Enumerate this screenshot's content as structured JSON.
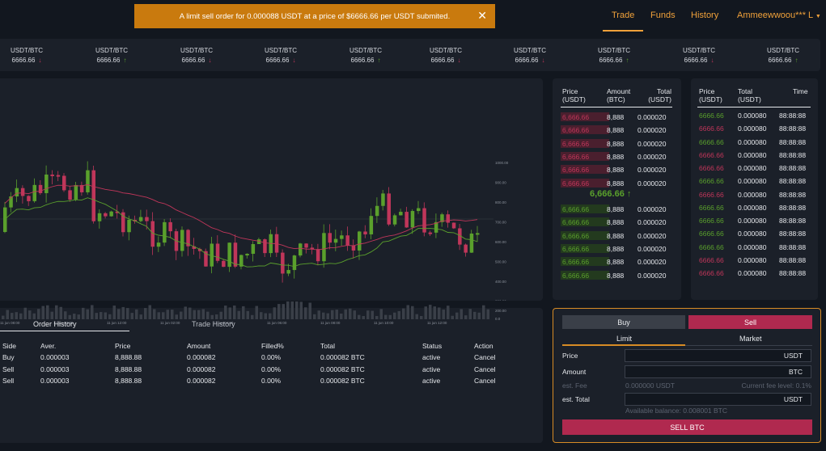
{
  "toast": {
    "message": "A limit sell order for 0.000088 USDT at a price of $6666.66 per USDT submited.",
    "close_icon": "close-icon"
  },
  "nav": {
    "trade": "Trade",
    "funds": "Funds",
    "history": "History",
    "user": "Ammeewwoou*** L",
    "user_icon": "caret-down-icon"
  },
  "ticker": [
    {
      "pair": "USDT/BTC",
      "price": "6666.66",
      "dir": "down"
    },
    {
      "pair": "USDT/BTC",
      "price": "6666.66",
      "dir": "up"
    },
    {
      "pair": "USDT/BTC",
      "price": "6666.66",
      "dir": "down"
    },
    {
      "pair": "USDT/BTC",
      "price": "6666.66",
      "dir": "down"
    },
    {
      "pair": "USDT/BTC",
      "price": "6666.66",
      "dir": "up"
    },
    {
      "pair": "USDT/BTC",
      "price": "6666.66",
      "dir": "down"
    },
    {
      "pair": "USDT/BTC",
      "price": "6666.66",
      "dir": "down"
    },
    {
      "pair": "USDT/BTC",
      "price": "6666.66",
      "dir": "up"
    },
    {
      "pair": "USDT/BTC",
      "price": "6666.66",
      "dir": "down"
    },
    {
      "pair": "USDT/BTC",
      "price": "6666.66",
      "dir": "up"
    }
  ],
  "chart": {
    "y_ticks": [
      "1000.00",
      "900.00",
      "800.00",
      "700.00",
      "600.00",
      "500.00",
      "400.00",
      "300.00"
    ],
    "vol_ticks": [
      "200.00",
      "0.0"
    ],
    "x_ticks": [
      "11 jun 08:00",
      "11 jun 10:00",
      "11 jun 12:00",
      "11 jun 02:00",
      "11 jun 04:00",
      "11 jun 06:00",
      "11 jun 08:00",
      "11 jun 10:00",
      "11 jun 12:00"
    ],
    "colors": {
      "up": "#5aa02c",
      "down": "#c0365a"
    }
  },
  "orderbook": {
    "headers": {
      "price": "Price",
      "price_unit": "(USDT)",
      "amount": "Amount",
      "amount_unit": "(BTC)",
      "total": "Total",
      "total_unit": "(USDT)"
    },
    "asks": [
      {
        "price": "6,666.66",
        "amount": "8,888",
        "total": "0.000020"
      },
      {
        "price": "6,666.66",
        "amount": "8,888",
        "total": "0.000020"
      },
      {
        "price": "6,666.66",
        "amount": "8,888",
        "total": "0.000020"
      },
      {
        "price": "6,666.66",
        "amount": "8,888",
        "total": "0.000020"
      },
      {
        "price": "6,666.66",
        "amount": "8,888",
        "total": "0.000020"
      },
      {
        "price": "6,666.66",
        "amount": "8,888",
        "total": "0.000020"
      }
    ],
    "last": "6,666.66",
    "bids": [
      {
        "price": "6,666.66",
        "amount": "8,888",
        "total": "0.000020"
      },
      {
        "price": "6,666.66",
        "amount": "8,888",
        "total": "0.000020"
      },
      {
        "price": "6,666.66",
        "amount": "8,888",
        "total": "0.000020"
      },
      {
        "price": "6,666.66",
        "amount": "8,888",
        "total": "0.000020"
      },
      {
        "price": "6,666.66",
        "amount": "8,888",
        "total": "0.000020"
      },
      {
        "price": "6,666.66",
        "amount": "8,888",
        "total": "0.000020"
      }
    ]
  },
  "trades": {
    "headers": {
      "price": "Price",
      "price_unit": "(USDT)",
      "total": "Total",
      "total_unit": "(USDT)",
      "time": "Time"
    },
    "rows": [
      {
        "price": "6666.66",
        "total": "0.000080",
        "time": "88:88:88",
        "side": "up"
      },
      {
        "price": "6666.66",
        "total": "0.000080",
        "time": "88:88:88",
        "side": "down"
      },
      {
        "price": "6666.66",
        "total": "0.000080",
        "time": "88:88:88",
        "side": "up"
      },
      {
        "price": "6666.66",
        "total": "0.000080",
        "time": "88:88:88",
        "side": "down"
      },
      {
        "price": "6666.66",
        "total": "0.000080",
        "time": "88:88:88",
        "side": "down"
      },
      {
        "price": "6666.66",
        "total": "0.000080",
        "time": "88:88:88",
        "side": "up"
      },
      {
        "price": "6666.66",
        "total": "0.000080",
        "time": "88:88:88",
        "side": "down"
      },
      {
        "price": "6666.66",
        "total": "0.000080",
        "time": "88:88:88",
        "side": "up"
      },
      {
        "price": "6666.66",
        "total": "0.000080",
        "time": "88:88:88",
        "side": "up"
      },
      {
        "price": "6666.66",
        "total": "0.000080",
        "time": "88:88:88",
        "side": "up"
      },
      {
        "price": "6666.66",
        "total": "0.000080",
        "time": "88:88:88",
        "side": "up"
      },
      {
        "price": "6666.66",
        "total": "0.000080",
        "time": "88:88:88",
        "side": "down"
      },
      {
        "price": "6666.66",
        "total": "0.000080",
        "time": "88:88:88",
        "side": "down"
      }
    ]
  },
  "history": {
    "tabs": {
      "orders": "Order History",
      "trades": "Trade History"
    },
    "columns": [
      "Side",
      "Aver.",
      "Price",
      "Amount",
      "Filled%",
      "Total",
      "Status",
      "Action"
    ],
    "rows": [
      [
        "Buy",
        "0.000003",
        "8,888.88",
        "0.000082",
        "0.00%",
        "0.000082 BTC",
        "active",
        "Cancel"
      ],
      [
        "Sell",
        "0.000003",
        "8,888.88",
        "0.000082",
        "0.00%",
        "0.000082 BTC",
        "active",
        "Cancel"
      ],
      [
        "Sell",
        "0.000003",
        "8,888.88",
        "0.000082",
        "0.00%",
        "0.000082 BTC",
        "active",
        "Cancel"
      ]
    ]
  },
  "form": {
    "buy": "Buy",
    "sell": "Sell",
    "limit": "Limit",
    "market": "Market",
    "price_label": "Price",
    "price_unit": "USDT",
    "amount_label": "Amount",
    "amount_unit": "BTC",
    "fee_label": "est. Fee",
    "fee_value": "0.000000 USDT",
    "fee_level": "Current fee level: 0.1%",
    "total_label": "est. Total",
    "total_unit": "USDT",
    "balance": "Available balance: 0.008001 BTC",
    "submit": "SELL BTC"
  }
}
